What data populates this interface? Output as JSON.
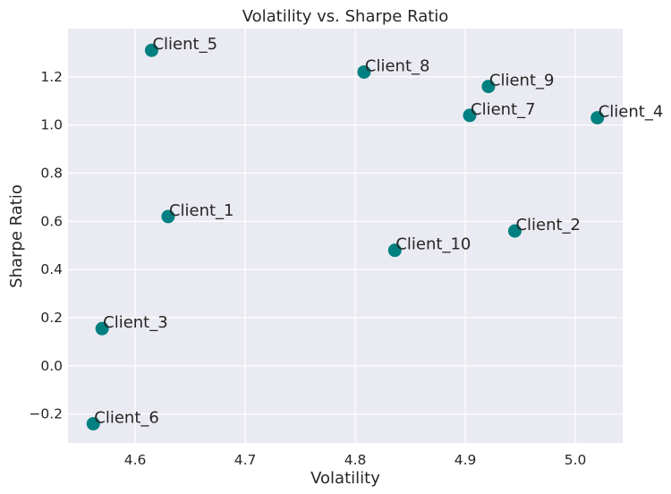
{
  "chart_data": {
    "type": "scatter",
    "title": "Volatility vs. Sharpe Ratio",
    "xlabel": "Volatility",
    "ylabel": "Sharpe Ratio",
    "xlim": [
      4.539,
      5.043
    ],
    "ylim": [
      -0.32,
      1.4
    ],
    "xticks": [
      4.6,
      4.7,
      4.8,
      4.9,
      5.0
    ],
    "xtick_labels": [
      "4.6",
      "4.7",
      "4.8",
      "4.9",
      "5.0"
    ],
    "yticks": [
      -0.2,
      0.0,
      0.2,
      0.4,
      0.6,
      0.8,
      1.0,
      1.2
    ],
    "ytick_labels": [
      "−0.2",
      "0.0",
      "0.2",
      "0.4",
      "0.6",
      "0.8",
      "1.0",
      "1.2"
    ],
    "grid": true,
    "legend": false,
    "colors": {
      "plot_background": "#eaeaf2",
      "marker": "#008080",
      "grid": "#ffffff",
      "text": "#262626"
    },
    "points": [
      {
        "label": "Client_1",
        "x": 4.63,
        "y": 0.62
      },
      {
        "label": "Client_2",
        "x": 4.945,
        "y": 0.56
      },
      {
        "label": "Client_3",
        "x": 4.57,
        "y": 0.155
      },
      {
        "label": "Client_4",
        "x": 5.02,
        "y": 1.03
      },
      {
        "label": "Client_5",
        "x": 4.615,
        "y": 1.31
      },
      {
        "label": "Client_6",
        "x": 4.562,
        "y": -0.24
      },
      {
        "label": "Client_7",
        "x": 4.904,
        "y": 1.04
      },
      {
        "label": "Client_8",
        "x": 4.808,
        "y": 1.22
      },
      {
        "label": "Client_9",
        "x": 4.921,
        "y": 1.16
      },
      {
        "label": "Client_10",
        "x": 4.836,
        "y": 0.48
      }
    ]
  }
}
